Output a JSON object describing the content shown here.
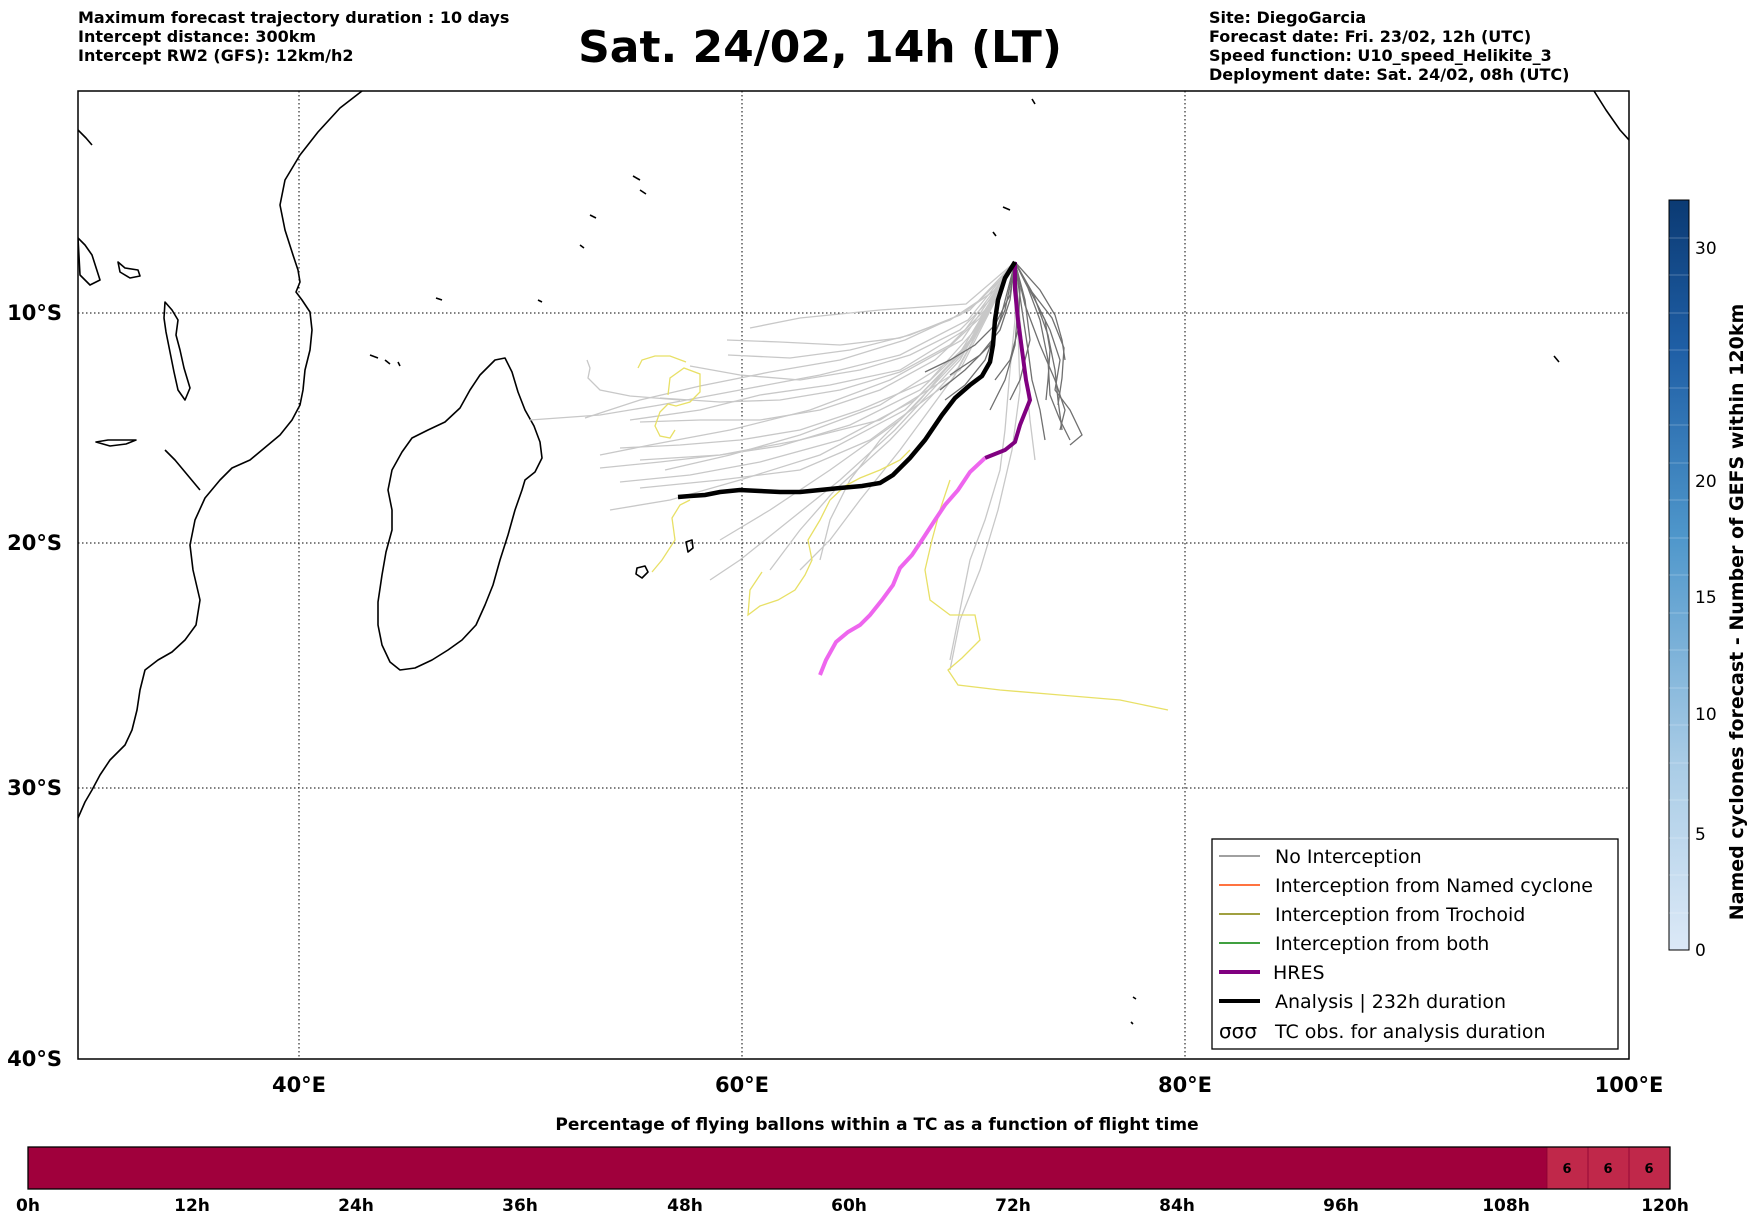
{
  "header_left": [
    "Maximum forecast trajectory duration : 10 days",
    "Intercept distance: 300km",
    "Intercept RW2 (GFS):  12km/h2"
  ],
  "header_right": [
    "Site: DiegoGarcia",
    "Forecast date: Fri. 23/02, 12h (UTC)",
    "Speed function: U10_speed_Helikite_3",
    "Deployment date: Sat. 24/02, 08h (UTC)"
  ],
  "title": "Sat. 24/02, 14h (LT)",
  "map": {
    "lat_labels": [
      "10°S",
      "20°S",
      "30°S",
      "40°S"
    ],
    "lon_labels": [
      "40°E",
      "60°E",
      "80°E",
      "100°E"
    ],
    "legend": [
      {
        "label": "No Interception",
        "color": "#808080",
        "style": "line"
      },
      {
        "label": "Interception from Named cyclone",
        "color": "#ff4500",
        "style": "line"
      },
      {
        "label": "Interception from Trochoid",
        "color": "#808000",
        "style": "line"
      },
      {
        "label": "Interception from both",
        "color": "#008000",
        "style": "line"
      },
      {
        "label": "HRES",
        "color": "#800080",
        "style": "thick"
      },
      {
        "label": "Analysis | 232h duration",
        "color": "#000000",
        "style": "thick"
      },
      {
        "label": "TC obs. for analysis duration",
        "color": "#000000",
        "style": "symbol",
        "symbol": "σσσ"
      }
    ]
  },
  "colorbar_right": {
    "label": "Named cyclones forecast - Number of GEFS within 120km",
    "ticks": [
      "0",
      "5",
      "10",
      "15",
      "20",
      "30"
    ]
  },
  "bottom_bar": {
    "title": "Percentage of flying ballons within a TC as a function of flight time",
    "ticks": [
      "0h",
      "12h",
      "24h",
      "36h",
      "48h",
      "60h",
      "72h",
      "84h",
      "96h",
      "108h",
      "120h"
    ],
    "cell_values": [
      "6",
      "6",
      "6"
    ],
    "main_color": "#a0003c",
    "end_color": "#c0284a"
  }
}
